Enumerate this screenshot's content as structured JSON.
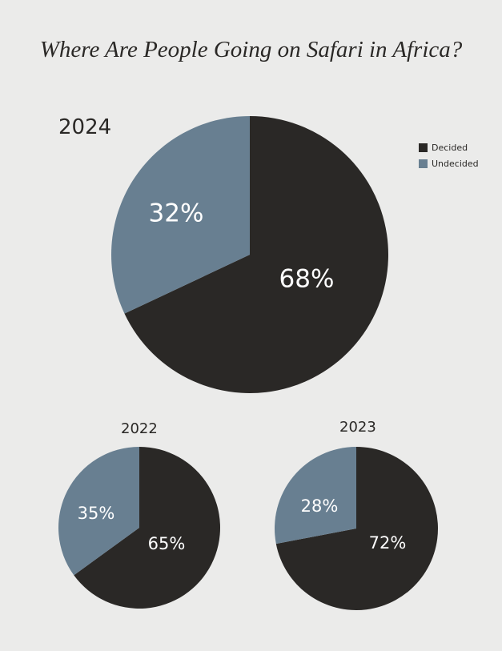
{
  "title": "Where Are People Going on Safari in Africa?",
  "colors": {
    "decided": "#2a2826",
    "undecided": "#687f91"
  },
  "legend": [
    {
      "label": "Decided",
      "color": "#2a2826"
    },
    {
      "label": "Undecided",
      "color": "#687f91"
    }
  ],
  "chart_data": [
    {
      "type": "pie",
      "title": "2024",
      "slices": [
        {
          "name": "Decided",
          "value": 68,
          "label": "68%"
        },
        {
          "name": "Undecided",
          "value": 32,
          "label": "32%"
        }
      ]
    },
    {
      "type": "pie",
      "title": "2022",
      "slices": [
        {
          "name": "Decided",
          "value": 65,
          "label": "65%"
        },
        {
          "name": "Undecided",
          "value": 35,
          "label": "35%"
        }
      ]
    },
    {
      "type": "pie",
      "title": "2023",
      "slices": [
        {
          "name": "Decided",
          "value": 72,
          "label": "72%"
        },
        {
          "name": "Undecided",
          "value": 28,
          "label": "28%"
        }
      ]
    }
  ]
}
